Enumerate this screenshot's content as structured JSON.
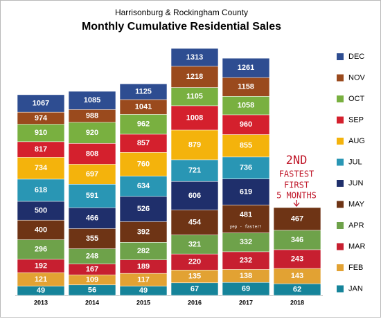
{
  "chart_data": {
    "type": "cumulative-bar",
    "subtitle": "Harrisonburg & Rockingham County",
    "title": "Monthly Cumulative Residential Sales",
    "categories": [
      "2013",
      "2014",
      "2015",
      "2016",
      "2017",
      "2018"
    ],
    "series": [
      {
        "name": "JAN",
        "color": "#16849a",
        "values": [
          49,
          56,
          49,
          67,
          69,
          62
        ]
      },
      {
        "name": "FEB",
        "color": "#e2a233",
        "values": [
          121,
          109,
          117,
          135,
          138,
          143
        ]
      },
      {
        "name": "MAR",
        "color": "#c71f30",
        "values": [
          192,
          167,
          189,
          220,
          232,
          243
        ]
      },
      {
        "name": "APR",
        "color": "#6ea24a",
        "values": [
          296,
          248,
          282,
          321,
          332,
          346
        ]
      },
      {
        "name": "MAY",
        "color": "#6e3415",
        "values": [
          400,
          355,
          392,
          454,
          481,
          467
        ]
      },
      {
        "name": "JUN",
        "color": "#1f2f6b",
        "values": [
          500,
          466,
          526,
          606,
          619,
          null
        ]
      },
      {
        "name": "JUL",
        "color": "#2996b4",
        "values": [
          618,
          591,
          634,
          721,
          736,
          null
        ]
      },
      {
        "name": "AUG",
        "color": "#f4b30c",
        "values": [
          734,
          697,
          760,
          879,
          855,
          null
        ]
      },
      {
        "name": "SEP",
        "color": "#d4202d",
        "values": [
          817,
          808,
          857,
          1008,
          960,
          null
        ]
      },
      {
        "name": "OCT",
        "color": "#79b040",
        "values": [
          910,
          920,
          962,
          1105,
          1058,
          null
        ]
      },
      {
        "name": "NOV",
        "color": "#9a4a1d",
        "values": [
          974,
          988,
          1041,
          1218,
          1158,
          null
        ]
      },
      {
        "name": "DEC",
        "color": "#2e4d91",
        "values": [
          1067,
          1085,
          1125,
          1313,
          1261,
          null
        ]
      }
    ],
    "annotations": [
      "2ND",
      "FASTEST",
      "FIRST",
      "5 MONTHS",
      "yep - faster!"
    ]
  }
}
